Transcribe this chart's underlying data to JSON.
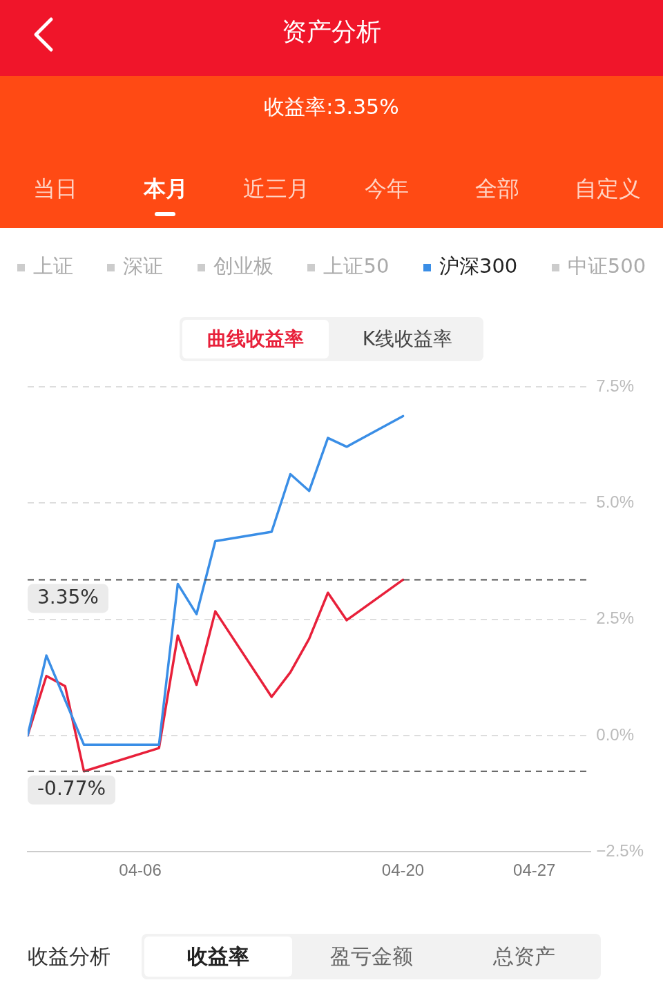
{
  "chart_data": {
    "type": "line",
    "title": "资产分析",
    "subtitle": "收益率:3.35%",
    "x": [
      "--03-31",
      "--04-01",
      "--04-02",
      "--04-03",
      "--04-07",
      "--04-08",
      "--04-09",
      "--04-10",
      "--04-13",
      "--04-14",
      "--04-15",
      "--04-16",
      "--04-17",
      "--04-20"
    ],
    "series": [
      {
        "name": "沪深300",
        "color": "#3a8ee6",
        "values": [
          0,
          1.72,
          0.76,
          -0.2,
          -0.2,
          3.26,
          2.61,
          4.18,
          4.38,
          5.62,
          5.26,
          6.4,
          6.21,
          6.87
        ]
      },
      {
        "color": "#e8203a",
        "values": [
          0,
          1.28,
          1.06,
          -0.77,
          -0.27,
          2.15,
          1.09,
          2.67,
          0.83,
          1.36,
          2.08,
          3.07,
          2.48,
          3.35
        ]
      }
    ],
    "xlim": [
      "--03-31",
      "--04-30"
    ],
    "xticks": [
      {
        "value": "--04-06",
        "label": "04-06"
      },
      {
        "value": "--04-20",
        "label": "04-20"
      },
      {
        "value": "--04-27",
        "label": "04-27"
      }
    ],
    "ylim": [
      -2.5,
      7.5
    ],
    "yticks": [
      {
        "value": -2.5,
        "label": "−2.5%"
      },
      {
        "value": 0,
        "label": "0.0%"
      },
      {
        "value": 2.5,
        "label": "2.5%"
      },
      {
        "value": 5,
        "label": "5.0%"
      },
      {
        "value": 7.5,
        "label": "7.5%"
      }
    ],
    "ref_lines": [
      {
        "axis": "y",
        "value": 3.35,
        "label": "3.35%",
        "color": "#555555",
        "line_style": "dashed"
      },
      {
        "axis": "y",
        "value": -0.77,
        "label": "-0.77%",
        "color": "#555555",
        "line_style": "dashed"
      }
    ],
    "grid": "y",
    "legend": "top",
    "marker": "none",
    "line_style": "solid",
    "annotations": [
      "当日",
      "本月",
      "近三月",
      "今年",
      "全部",
      "自定义",
      "上证",
      "深证",
      "创业板",
      "上证50",
      "中证500",
      "曲线收益率",
      "K线收益率",
      "收益分析",
      "收益率",
      "盈亏金额",
      "总资产"
    ]
  }
}
